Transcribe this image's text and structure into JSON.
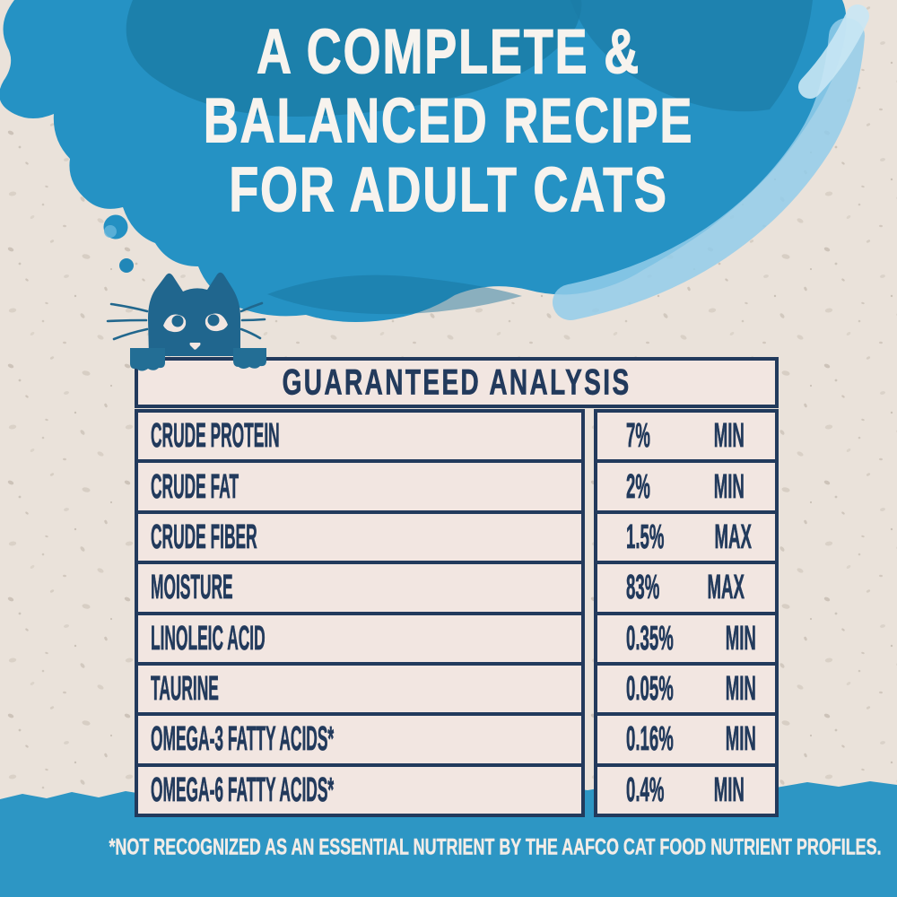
{
  "headline": {
    "lines": [
      "A COMPLETE &",
      "BALANCED RECIPE",
      "FOR ADULT CATS"
    ]
  },
  "analysis_table": {
    "title": "GUARANTEED ANALYSIS",
    "rows": [
      {
        "label": "CRUDE PROTEIN",
        "value": "7%",
        "qualifier": "MIN"
      },
      {
        "label": "CRUDE FAT",
        "value": "2%",
        "qualifier": "MIN"
      },
      {
        "label": "CRUDE FIBER",
        "value": "1.5%",
        "qualifier": "MAX"
      },
      {
        "label": "MOISTURE",
        "value": "83%",
        "qualifier": "MAX"
      },
      {
        "label": "LINOLEIC ACID",
        "value": "0.35%",
        "qualifier": "MIN"
      },
      {
        "label": "TAURINE",
        "value": "0.05%",
        "qualifier": "MIN"
      },
      {
        "label": "OMEGA-3 FATTY ACIDS*",
        "value": "0.16%",
        "qualifier": "MIN"
      },
      {
        "label": "OMEGA-6 FATTY ACIDS*",
        "value": "0.4%",
        "qualifier": "MIN"
      }
    ]
  },
  "footnote": "*NOT RECOGNIZED AS AN ESSENTIAL NUTRIENT BY THE AAFCO CAT FOOD NUTRIENT PROFILES.",
  "illustrations": {
    "thought_cloud_icon": "blue watercolor thought-bubble cloud",
    "thought_dots_icon": "two blue thought-bubble dots",
    "peeking_cat_icon": "blue cat peeking over table edge with paws and whiskers"
  },
  "colors": {
    "page_background": "#eae2da",
    "cloud_blue": "#2592c4",
    "cloud_dark_wash": "#1b7ca7",
    "cloud_light_wash": "#93cdea",
    "band_blue": "#2d96c4",
    "navy_text_and_borders": "#223a5c",
    "cell_background": "#f2e6e1",
    "headline_white": "#f7f3ee",
    "cat_blue": "#20668e"
  }
}
